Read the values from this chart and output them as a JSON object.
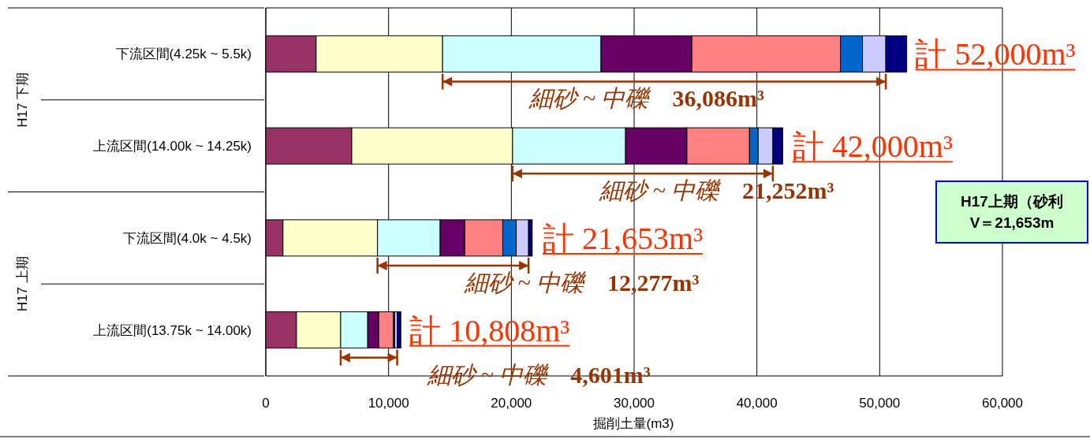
{
  "chart_data": {
    "type": "bar",
    "orientation": "horizontal",
    "stacked": true,
    "xlabel": "掘削土量(m3)",
    "categories": [
      "下流区間(4.25k ~ 5.5k)",
      "上流区間(14.00k ~ 14.25k)",
      "下流区間(4.0k ~ 4.5k)",
      "上流区間(13.75k ~ 14.00k)"
    ],
    "series": [
      {
        "color": "#993366",
        "values": [
          4100,
          7000,
          1400,
          2500
        ]
      },
      {
        "color": "#ffffcc",
        "values": [
          10300,
          13100,
          7700,
          3600
        ]
      },
      {
        "color": "#ccffff",
        "values": [
          12900,
          9200,
          5100,
          2200
        ]
      },
      {
        "color": "#660066",
        "values": [
          7400,
          5000,
          2000,
          900
        ]
      },
      {
        "color": "#ff8080",
        "values": [
          12100,
          5100,
          3100,
          1200
        ]
      },
      {
        "color": "#0066cc",
        "values": [
          1800,
          700,
          1100,
          100
        ]
      },
      {
        "color": "#ccccff",
        "values": [
          1900,
          1200,
          1000,
          200
        ]
      },
      {
        "color": "#000080",
        "values": [
          1700,
          800,
          300,
          300
        ]
      }
    ],
    "xlim": [
      0,
      60000
    ],
    "xticks": [
      0,
      {
        "value": 10000,
        "label": "10,000"
      },
      {
        "value": 20000,
        "label": "20,000"
      },
      {
        "value": 30000,
        "label": "30,000"
      },
      {
        "value": 40000,
        "label": "40,000"
      },
      {
        "value": 50000,
        "label": "50,000"
      },
      {
        "value": 60000,
        "label": "60,000"
      }
    ],
    "grid": "x",
    "annotations": [
      {
        "text": "計 52,000m³",
        "x": 52000,
        "y": "下流区間(4.25k ~ 5.5k)"
      },
      {
        "text": "計 42,000m³",
        "x": 42000,
        "y": "上流区間(14.00k ~ 14.25k)"
      },
      {
        "text": "計 21,653m³",
        "x": 21653,
        "y": "下流区間(4.0k ~ 4.5k)"
      },
      {
        "text": "計 10,808m³",
        "x": 10808,
        "y": "上流区間(13.75k ~ 14.00k)"
      },
      "細砂 ~ 中礫　36,086m³",
      "細砂 ~ 中礫　21,252m³",
      "細砂 ~ 中礫　12,277m³",
      "細砂 ~ 中礫　4,601m³",
      "H17 下期",
      "H17 上期",
      "H17上期（砂利",
      "V＝21,653m"
    ]
  }
}
